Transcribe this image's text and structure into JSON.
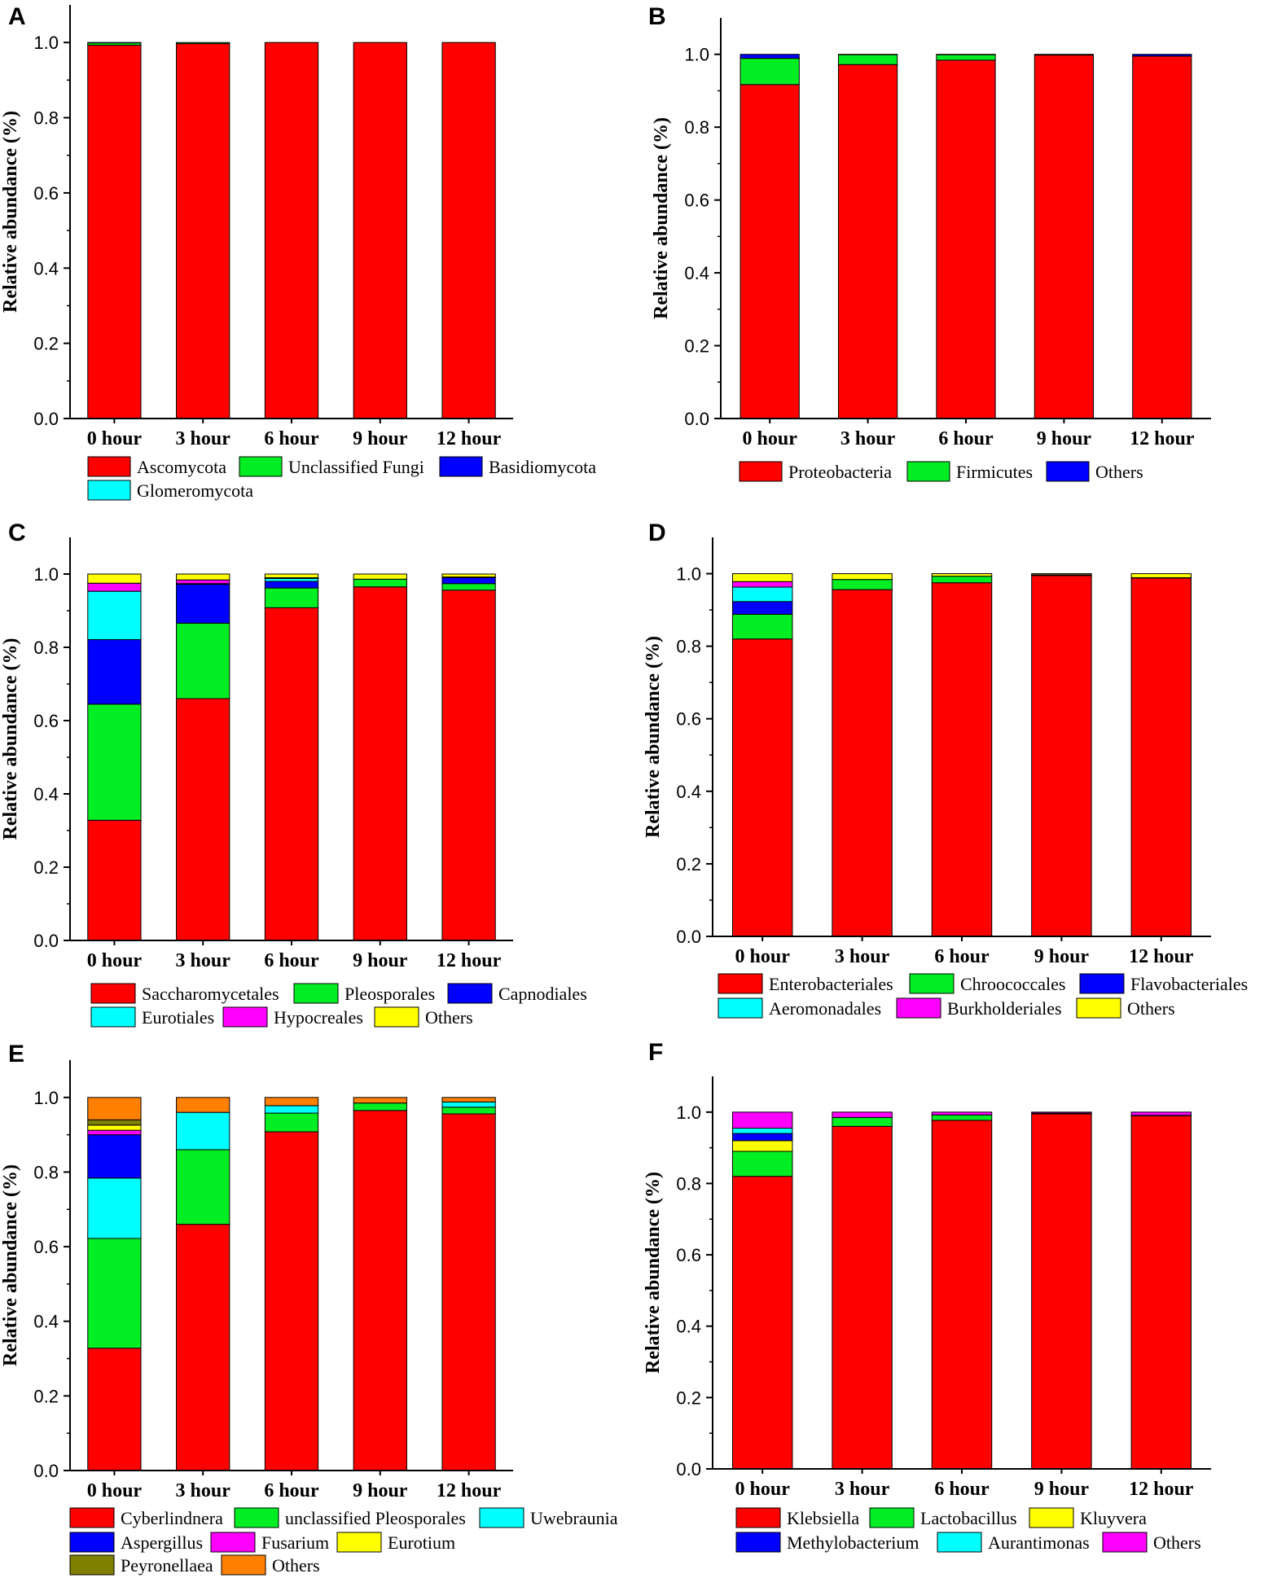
{
  "chart_data": [
    {
      "panel": "A",
      "type": "bar",
      "stacked": true,
      "ylabel": "Relative abundance (%)",
      "ylim": [
        0,
        1.1
      ],
      "yticks": [
        "0.0",
        "0.2",
        "0.4",
        "0.6",
        "0.8",
        "1.0"
      ],
      "categories": [
        "0 hour",
        "3 hour",
        "6 hour",
        "9 hour",
        "12 hour"
      ],
      "series": [
        {
          "name": "Ascomycota",
          "color": "#ff0000",
          "values": [
            0.993,
            0.997,
            1.0,
            1.0,
            1.0
          ]
        },
        {
          "name": "Unclassified Fungi",
          "color": "#00ee22",
          "values": [
            0.006,
            0.003,
            0.0,
            0.0,
            0.0
          ]
        },
        {
          "name": "Basidiomycota",
          "color": "#0000ff",
          "values": [
            0.001,
            0.0,
            0.0,
            0.0,
            0.0
          ]
        },
        {
          "name": "Glomeromycota",
          "color": "#00ffff",
          "values": [
            0.0,
            0.0,
            0.0,
            0.0,
            0.0
          ]
        }
      ]
    },
    {
      "panel": "B",
      "type": "bar",
      "stacked": true,
      "ylabel": "Relative abundance (%)",
      "ylim": [
        0,
        1.1
      ],
      "yticks": [
        "0.0",
        "0.2",
        "0.4",
        "0.6",
        "0.8",
        "1.0"
      ],
      "categories": [
        "0 hour",
        "3 hour",
        "6 hour",
        "9 hour",
        "12 hour"
      ],
      "series": [
        {
          "name": "Proteobacteria",
          "color": "#ff0000",
          "values": [
            0.917,
            0.972,
            0.984,
            0.998,
            0.995
          ]
        },
        {
          "name": "Firmicutes",
          "color": "#00ee22",
          "values": [
            0.072,
            0.027,
            0.015,
            0.002,
            0.0
          ]
        },
        {
          "name": "Others",
          "color": "#0000ff",
          "values": [
            0.011,
            0.001,
            0.001,
            0.0,
            0.005
          ]
        }
      ]
    },
    {
      "panel": "C",
      "type": "bar",
      "stacked": true,
      "ylabel": "Relative abundance (%)",
      "ylim": [
        0,
        1.1
      ],
      "yticks": [
        "0.0",
        "0.2",
        "0.4",
        "0.6",
        "0.8",
        "1.0"
      ],
      "categories": [
        "0 hour",
        "3 hour",
        "6 hour",
        "9 hour",
        "12 hour"
      ],
      "series": [
        {
          "name": "Saccharomycetales",
          "color": "#ff0000",
          "values": [
            0.328,
            0.66,
            0.908,
            0.965,
            0.956
          ]
        },
        {
          "name": "Pleosporales",
          "color": "#00ee22",
          "values": [
            0.317,
            0.206,
            0.054,
            0.021,
            0.018
          ]
        },
        {
          "name": "Capnodiales",
          "color": "#0000ff",
          "values": [
            0.176,
            0.106,
            0.018,
            0.0,
            0.016
          ]
        },
        {
          "name": "Eurotiales",
          "color": "#00ffff",
          "values": [
            0.132,
            0.002,
            0.008,
            0.0,
            0.002
          ]
        },
        {
          "name": "Hypocreales",
          "color": "#ff00ff",
          "values": [
            0.022,
            0.01,
            0.002,
            0.0,
            0.0
          ]
        },
        {
          "name": "Others",
          "color": "#ffff00",
          "values": [
            0.025,
            0.016,
            0.01,
            0.014,
            0.008
          ]
        }
      ]
    },
    {
      "panel": "D",
      "type": "bar",
      "stacked": true,
      "ylabel": "Relative abundance (%)",
      "ylim": [
        0,
        1.1
      ],
      "yticks": [
        "0.0",
        "0.2",
        "0.4",
        "0.6",
        "0.8",
        "1.0"
      ],
      "categories": [
        "0 hour",
        "3 hour",
        "6 hour",
        "9 hour",
        "12 hour"
      ],
      "series": [
        {
          "name": "Enterobacteriales",
          "color": "#ff0000",
          "values": [
            0.82,
            0.956,
            0.975,
            0.995,
            0.988
          ]
        },
        {
          "name": "Chroococcales",
          "color": "#00ee22",
          "values": [
            0.068,
            0.028,
            0.018,
            0.002,
            0.001
          ]
        },
        {
          "name": "Flavobacteriales",
          "color": "#0000ff",
          "values": [
            0.035,
            0.0,
            0.0,
            0.0,
            0.0
          ]
        },
        {
          "name": "Aeromonadales",
          "color": "#00ffff",
          "values": [
            0.04,
            0.0,
            0.0,
            0.0,
            0.0
          ]
        },
        {
          "name": "Burkholderiales",
          "color": "#ff00ff",
          "values": [
            0.015,
            0.0,
            0.0,
            0.0,
            0.0
          ]
        },
        {
          "name": "Others",
          "color": "#ffff00",
          "values": [
            0.022,
            0.016,
            0.007,
            0.003,
            0.011
          ]
        }
      ]
    },
    {
      "panel": "E",
      "type": "bar",
      "stacked": true,
      "ylabel": "Relative abundance (%)",
      "ylim": [
        0,
        1.1
      ],
      "yticks": [
        "0.0",
        "0.2",
        "0.4",
        "0.6",
        "0.8",
        "1.0"
      ],
      "categories": [
        "0 hour",
        "3 hour",
        "6 hour",
        "9 hour",
        "12 hour"
      ],
      "series": [
        {
          "name": "Cyberlindnera",
          "color": "#ff0000",
          "values": [
            0.328,
            0.66,
            0.908,
            0.965,
            0.956
          ]
        },
        {
          "name": "unclassified Pleosporales",
          "color": "#00ee22",
          "values": [
            0.294,
            0.2,
            0.05,
            0.02,
            0.018
          ]
        },
        {
          "name": "Uwebraunia",
          "color": "#00ffff",
          "values": [
            0.162,
            0.1,
            0.02,
            0.0,
            0.014
          ]
        },
        {
          "name": "Aspergillus",
          "color": "#0000ff",
          "values": [
            0.116,
            0.0,
            0.0,
            0.0,
            0.0
          ]
        },
        {
          "name": "Fusarium",
          "color": "#ff00ff",
          "values": [
            0.012,
            0.0,
            0.0,
            0.0,
            0.0
          ]
        },
        {
          "name": "Eurotium",
          "color": "#ffff00",
          "values": [
            0.014,
            0.0,
            0.0,
            0.0,
            0.0
          ]
        },
        {
          "name": "Peyronellaea",
          "color": "#808000",
          "values": [
            0.014,
            0.0,
            0.0,
            0.0,
            0.0
          ]
        },
        {
          "name": "Others",
          "color": "#ff7f00",
          "values": [
            0.06,
            0.04,
            0.022,
            0.015,
            0.012
          ]
        }
      ]
    },
    {
      "panel": "F",
      "type": "bar",
      "stacked": true,
      "ylabel": "Relative abundance (%)",
      "ylim": [
        0,
        1.1
      ],
      "yticks": [
        "0.0",
        "0.2",
        "0.4",
        "0.6",
        "0.8",
        "1.0"
      ],
      "categories": [
        "0 hour",
        "3 hour",
        "6 hour",
        "9 hour",
        "12 hour"
      ],
      "series": [
        {
          "name": "Klebsiella",
          "color": "#ff0000",
          "values": [
            0.82,
            0.96,
            0.977,
            0.995,
            0.99
          ]
        },
        {
          "name": "Lactobacillus",
          "color": "#00ee22",
          "values": [
            0.07,
            0.025,
            0.015,
            0.002,
            0.001
          ]
        },
        {
          "name": "Kluyvera",
          "color": "#ffff00",
          "values": [
            0.03,
            0.0,
            0.0,
            0.0,
            0.0
          ]
        },
        {
          "name": "Methylobacterium",
          "color": "#0000ff",
          "values": [
            0.02,
            0.0,
            0.0,
            0.0,
            0.0
          ]
        },
        {
          "name": "Aurantimonas",
          "color": "#00ffff",
          "values": [
            0.015,
            0.0,
            0.0,
            0.0,
            0.0
          ]
        },
        {
          "name": "Others",
          "color": "#ff00ff",
          "values": [
            0.045,
            0.015,
            0.008,
            0.003,
            0.009
          ]
        }
      ]
    }
  ]
}
